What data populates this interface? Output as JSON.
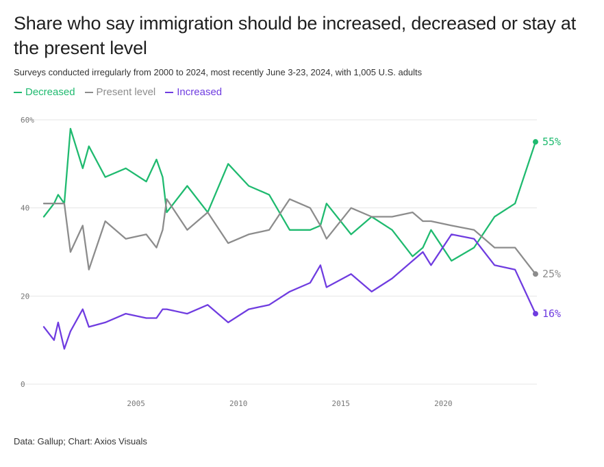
{
  "header": {
    "title": "Share who say immigration should be increased, decreased or stay at the present level",
    "subtitle": "Surveys conducted irregularly from 2000 to 2024, most recently June 3-23, 2024, with 1,005 U.S. adults"
  },
  "footer": {
    "source": "Data: Gallup; Chart: Axios Visuals"
  },
  "colors": {
    "decreased": "#1fba6f",
    "present": "#8c8c8c",
    "increased": "#6f3ce0",
    "grid": "#e4e4e4"
  },
  "chart_data": {
    "type": "line",
    "title": "Share who say immigration should be increased, decreased or stay at the present level",
    "xlabel": "",
    "ylabel": "",
    "xlim": [
      2000.3,
      2024.5
    ],
    "ylim": [
      0,
      60
    ],
    "x_ticks": [
      "2005",
      "2010",
      "2015",
      "2020"
    ],
    "x_tick_values": [
      2005,
      2010,
      2015,
      2020
    ],
    "y_ticks": [
      "0",
      "20",
      "40",
      "60%"
    ],
    "y_tick_values": [
      0,
      20,
      40,
      60
    ],
    "grid": true,
    "legend_position": "top-left",
    "series": [
      {
        "name": "Decreased",
        "color": "#1fba6f",
        "end_label": "55%",
        "points": [
          [
            2000.5,
            38
          ],
          [
            2001.0,
            41
          ],
          [
            2001.2,
            43
          ],
          [
            2001.5,
            41
          ],
          [
            2001.8,
            58
          ],
          [
            2002.4,
            49
          ],
          [
            2002.7,
            54
          ],
          [
            2003.5,
            47
          ],
          [
            2004.5,
            49
          ],
          [
            2005.5,
            46
          ],
          [
            2006.0,
            51
          ],
          [
            2006.3,
            47
          ],
          [
            2006.5,
            39
          ],
          [
            2007.5,
            45
          ],
          [
            2008.5,
            39
          ],
          [
            2009.5,
            50
          ],
          [
            2010.5,
            45
          ],
          [
            2011.5,
            43
          ],
          [
            2012.5,
            35
          ],
          [
            2013.5,
            35
          ],
          [
            2014.0,
            36
          ],
          [
            2014.3,
            41
          ],
          [
            2015.5,
            34
          ],
          [
            2016.5,
            38
          ],
          [
            2017.5,
            35
          ],
          [
            2018.5,
            29
          ],
          [
            2019.0,
            31
          ],
          [
            2019.4,
            35
          ],
          [
            2020.4,
            28
          ],
          [
            2021.5,
            31
          ],
          [
            2022.5,
            38
          ],
          [
            2023.5,
            41
          ],
          [
            2024.5,
            55
          ]
        ]
      },
      {
        "name": "Present level",
        "color": "#8c8c8c",
        "end_label": "25%",
        "points": [
          [
            2000.5,
            41
          ],
          [
            2001.0,
            41
          ],
          [
            2001.2,
            41
          ],
          [
            2001.5,
            41
          ],
          [
            2001.8,
            30
          ],
          [
            2002.4,
            36
          ],
          [
            2002.7,
            26
          ],
          [
            2003.5,
            37
          ],
          [
            2004.5,
            33
          ],
          [
            2005.5,
            34
          ],
          [
            2006.0,
            31
          ],
          [
            2006.3,
            35
          ],
          [
            2006.5,
            42
          ],
          [
            2007.5,
            35
          ],
          [
            2008.5,
            39
          ],
          [
            2009.5,
            32
          ],
          [
            2010.5,
            34
          ],
          [
            2011.5,
            35
          ],
          [
            2012.5,
            42
          ],
          [
            2013.5,
            40
          ],
          [
            2014.0,
            36
          ],
          [
            2014.3,
            33
          ],
          [
            2015.5,
            40
          ],
          [
            2016.5,
            38
          ],
          [
            2017.5,
            38
          ],
          [
            2018.5,
            39
          ],
          [
            2019.0,
            37
          ],
          [
            2019.4,
            37
          ],
          [
            2020.4,
            36
          ],
          [
            2021.5,
            35
          ],
          [
            2022.5,
            31
          ],
          [
            2023.5,
            31
          ],
          [
            2024.5,
            25
          ]
        ]
      },
      {
        "name": "Increased",
        "color": "#6f3ce0",
        "end_label": "16%",
        "points": [
          [
            2000.5,
            13
          ],
          [
            2001.0,
            10
          ],
          [
            2001.2,
            14
          ],
          [
            2001.5,
            8
          ],
          [
            2001.8,
            12
          ],
          [
            2002.4,
            17
          ],
          [
            2002.7,
            13
          ],
          [
            2003.5,
            14
          ],
          [
            2004.5,
            16
          ],
          [
            2005.5,
            15
          ],
          [
            2006.0,
            15
          ],
          [
            2006.3,
            17
          ],
          [
            2006.5,
            17
          ],
          [
            2007.5,
            16
          ],
          [
            2008.5,
            18
          ],
          [
            2009.5,
            14
          ],
          [
            2010.5,
            17
          ],
          [
            2011.5,
            18
          ],
          [
            2012.5,
            21
          ],
          [
            2013.5,
            23
          ],
          [
            2014.0,
            27
          ],
          [
            2014.3,
            22
          ],
          [
            2015.5,
            25
          ],
          [
            2016.5,
            21
          ],
          [
            2017.5,
            24
          ],
          [
            2018.5,
            28
          ],
          [
            2019.0,
            30
          ],
          [
            2019.4,
            27
          ],
          [
            2020.4,
            34
          ],
          [
            2021.5,
            33
          ],
          [
            2022.5,
            27
          ],
          [
            2023.5,
            26
          ],
          [
            2024.5,
            16
          ]
        ]
      }
    ]
  }
}
